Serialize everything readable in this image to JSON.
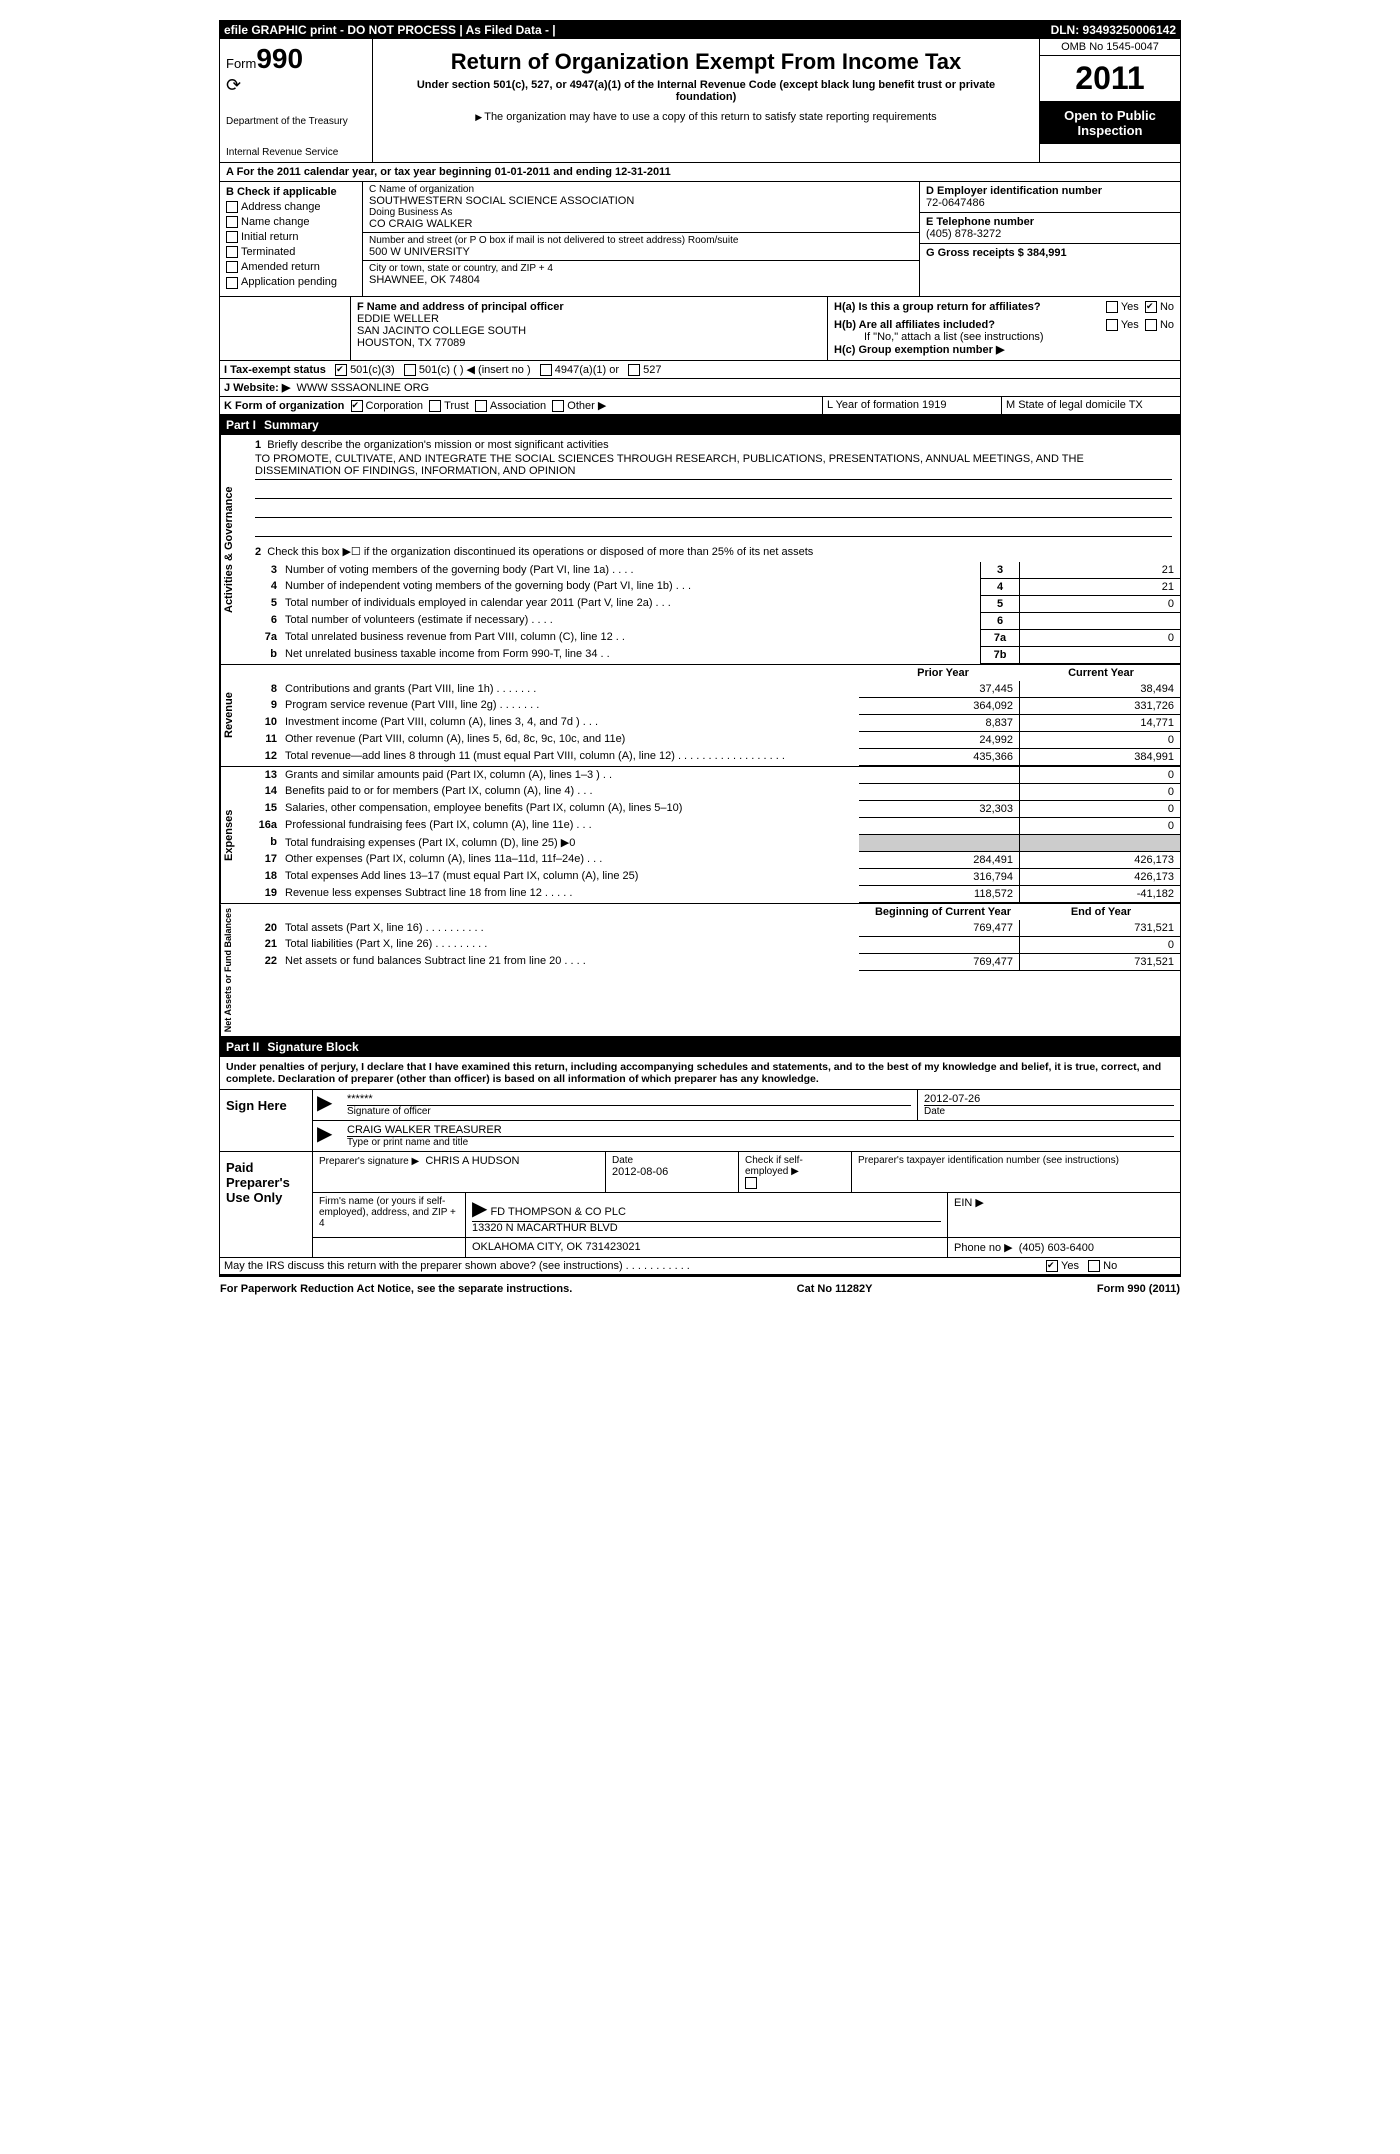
{
  "topbar": {
    "left": "efile GRAPHIC print - DO NOT PROCESS   | As Filed Data - |",
    "right": "DLN: 93493250006142"
  },
  "header": {
    "form_label": "Form",
    "form_number": "990",
    "dept1": "Department of the Treasury",
    "dept2": "Internal Revenue Service",
    "title": "Return of Organization Exempt From Income Tax",
    "subtitle": "Under section 501(c), 527, or 4947(a)(1) of the Internal Revenue Code (except black lung benefit trust or private foundation)",
    "note": "The organization may have to use a copy of this return to satisfy state reporting requirements",
    "omb": "OMB No 1545-0047",
    "year": "2011",
    "open1": "Open to Public",
    "open2": "Inspection"
  },
  "lineA": "A  For the 2011 calendar year, or tax year beginning 01-01-2011    and ending 12-31-2011",
  "blockB": {
    "title": "B  Check if applicable",
    "items": [
      "Address change",
      "Name change",
      "Initial return",
      "Terminated",
      "Amended return",
      "Application pending"
    ]
  },
  "blockC": {
    "label_name": "C Name of organization",
    "name": "SOUTHWESTERN SOCIAL SCIENCE ASSOCIATION",
    "dba_label": "Doing Business As",
    "dba": "CO CRAIG WALKER",
    "addr_label": "Number and street (or P O  box if mail is not delivered to street address)  Room/suite",
    "addr": "500 W UNIVERSITY",
    "city_label": "City or town, state or country, and ZIP + 4",
    "city": "SHAWNEE, OK  74804"
  },
  "blockD": {
    "d_label": "D Employer identification number",
    "d_val": "72-0647486",
    "e_label": "E Telephone number",
    "e_val": "(405) 878-3272",
    "g_label": "G Gross receipts $ 384,991"
  },
  "blockF": {
    "label": "F  Name and address of principal officer",
    "name": "EDDIE WELLER",
    "addr1": "SAN JACINTO COLLEGE SOUTH",
    "addr2": "HOUSTON, TX  77089"
  },
  "blockH": {
    "ha": "H(a)  Is this a group return for affiliates?",
    "hb": "H(b)  Are all affiliates included?",
    "hb_note": "If \"No,\" attach a list  (see instructions)",
    "hc": "H(c)   Group exemption number ▶",
    "yes": "Yes",
    "no": "No"
  },
  "lineI": {
    "label": "I   Tax-exempt status",
    "opts": [
      "501(c)(3)",
      "501(c) (  ) ◀ (insert no )",
      "4947(a)(1) or",
      "527"
    ]
  },
  "lineJ": {
    "label": "J   Website: ▶",
    "val": "WWW SSSAONLINE ORG"
  },
  "lineK": {
    "label": "K Form of organization",
    "opts": [
      "Corporation",
      "Trust",
      "Association",
      "Other ▶"
    ],
    "l": "L Year of formation  1919",
    "m": "M State of legal domicile  TX"
  },
  "part1": {
    "num": "Part I",
    "title": "Summary"
  },
  "summary": {
    "q1": "Briefly describe the organization's mission or most significant activities",
    "mission": "TO PROMOTE, CULTIVATE, AND INTEGRATE THE SOCIAL SCIENCES THROUGH RESEARCH, PUBLICATIONS, PRESENTATIONS, ANNUAL MEETINGS, AND THE DISSEMINATION OF FINDINGS, INFORMATION, AND OPINION",
    "q2": "Check this box ▶☐ if the organization discontinued its operations or disposed of more than 25% of its net assets",
    "lines_gov": [
      {
        "n": "3",
        "t": "Number of voting members of the governing body (Part VI, line 1a)  .   .   .   .",
        "ln": "3",
        "v": "21"
      },
      {
        "n": "4",
        "t": "Number of independent voting members of the governing body (Part VI, line 1b)  .   .   .",
        "ln": "4",
        "v": "21"
      },
      {
        "n": "5",
        "t": "Total number of individuals employed in calendar year 2011 (Part V, line 2a)  .   .   .",
        "ln": "5",
        "v": "0"
      },
      {
        "n": "6",
        "t": "Total number of volunteers (estimate if necessary)  .   .   .   .",
        "ln": "6",
        "v": ""
      },
      {
        "n": "7a",
        "t": "Total unrelated business revenue from Part VIII, column (C), line 12  .   .",
        "ln": "7a",
        "v": "0"
      },
      {
        "n": "b",
        "t": "Net unrelated business taxable income from Form 990-T, line 34  .   .",
        "ln": "7b",
        "v": ""
      }
    ],
    "col_prior": "Prior Year",
    "col_current": "Current Year",
    "lines_rev": [
      {
        "n": "8",
        "t": "Contributions and grants (Part VIII, line 1h)  .   .   .   .   .   .   .",
        "p": "37,445",
        "c": "38,494"
      },
      {
        "n": "9",
        "t": "Program service revenue (Part VIII, line 2g)  .   .   .   .   .   .   .",
        "p": "364,092",
        "c": "331,726"
      },
      {
        "n": "10",
        "t": "Investment income (Part VIII, column (A), lines 3, 4, and 7d )  .   .   .",
        "p": "8,837",
        "c": "14,771"
      },
      {
        "n": "11",
        "t": "Other revenue (Part VIII, column (A), lines 5, 6d, 8c, 9c, 10c, and 11e)",
        "p": "24,992",
        "c": "0"
      },
      {
        "n": "12",
        "t": "Total revenue—add lines 8 through 11 (must equal Part VIII, column (A), line 12) .   .   .   .   .   .   .   .   .   .   .   .   .   .   .   .   .   .",
        "p": "435,366",
        "c": "384,991"
      }
    ],
    "lines_exp": [
      {
        "n": "13",
        "t": "Grants and similar amounts paid (Part IX, column (A), lines 1–3 )  .   .",
        "p": "",
        "c": "0"
      },
      {
        "n": "14",
        "t": "Benefits paid to or for members (Part IX, column (A), line 4)  .   .   .",
        "p": "",
        "c": "0"
      },
      {
        "n": "15",
        "t": "Salaries, other compensation, employee benefits (Part IX, column (A), lines 5–10)",
        "p": "32,303",
        "c": "0"
      },
      {
        "n": "16a",
        "t": "Professional fundraising fees (Part IX, column (A), line 11e)  .   .   .",
        "p": "",
        "c": "0"
      },
      {
        "n": "b",
        "t": "Total fundraising expenses (Part IX, column (D), line 25) ▶0",
        "p": "shade",
        "c": "shade"
      },
      {
        "n": "17",
        "t": "Other expenses (Part IX, column (A), lines 11a–11d, 11f–24e)  .   .   .",
        "p": "284,491",
        "c": "426,173"
      },
      {
        "n": "18",
        "t": "Total expenses  Add lines 13–17 (must equal Part IX, column (A), line 25)",
        "p": "316,794",
        "c": "426,173"
      },
      {
        "n": "19",
        "t": "Revenue less expenses  Subtract line 18 from line 12  .   .   .   .   .",
        "p": "118,572",
        "c": "-41,182"
      }
    ],
    "col_begin": "Beginning of Current Year",
    "col_end": "End of Year",
    "lines_net": [
      {
        "n": "20",
        "t": "Total assets (Part X, line 16)  .   .   .   .   .   .   .   .   .   .",
        "p": "769,477",
        "c": "731,521"
      },
      {
        "n": "21",
        "t": "Total liabilities (Part X, line 26)  .   .   .   .   .   .   .   .   .",
        "p": "",
        "c": "0"
      },
      {
        "n": "22",
        "t": "Net assets or fund balances  Subtract line 21 from line 20  .   .   .   .",
        "p": "769,477",
        "c": "731,521"
      }
    ]
  },
  "vlabels": {
    "gov": "Activities & Governance",
    "rev": "Revenue",
    "exp": "Expenses",
    "net": "Net Assets or Fund Balances"
  },
  "part2": {
    "num": "Part II",
    "title": "Signature Block"
  },
  "perjury": "Under penalties of perjury, I declare that I have examined this return, including accompanying schedules and statements, and to the best of my knowledge and belief, it is true, correct, and complete. Declaration of preparer (other than officer) is based on all information of which preparer has any knowledge.",
  "sign": {
    "here": "Sign Here",
    "sig": "******",
    "sig_label": "Signature of officer",
    "date": "2012-07-26",
    "date_label": "Date",
    "name": "CRAIG WALKER TREASURER",
    "name_label": "Type or print name and title"
  },
  "paid": {
    "label1": "Paid",
    "label2": "Preparer's",
    "label3": "Use Only",
    "prep_sig_label": "Preparer's signature ▶",
    "prep_name": "CHRIS A HUDSON",
    "date_label": "Date",
    "date": "2012-08-06",
    "self_label": "Check if self-employed ▶",
    "ptin_label": "Preparer's taxpayer identification number (see instructions)",
    "firm_label": "Firm's name (or yours if self-employed), address, and ZIP + 4",
    "firm_name": "FD THOMPSON & CO PLC",
    "firm_addr1": "13320 N MACARTHUR BLVD",
    "firm_addr2": "OKLAHOMA CITY, OK  731423021",
    "ein_label": "EIN  ▶",
    "phone_label": "Phone no  ▶",
    "phone": "(405) 603-6400"
  },
  "discuss": {
    "q": "May the IRS discuss this return with the preparer shown above? (see instructions)  .   .   .   .   .   .   .   .   .   .   .",
    "yes": "Yes",
    "no": "No"
  },
  "footer": {
    "left": "For Paperwork Reduction Act Notice, see the separate instructions.",
    "mid": "Cat No  11282Y",
    "right": "Form 990 (2011)"
  }
}
